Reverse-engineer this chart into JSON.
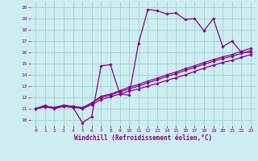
{
  "bg_color": "#cceef0",
  "grid_color": "#99cccc",
  "line_color": "#880088",
  "xlabel": "Windchill (Refroidissement éolien,°C)",
  "xlim": [
    -0.5,
    23.5
  ],
  "ylim": [
    9.5,
    20.5
  ],
  "xticks": [
    0,
    1,
    2,
    3,
    4,
    5,
    6,
    7,
    8,
    9,
    10,
    11,
    12,
    13,
    14,
    15,
    16,
    17,
    18,
    19,
    20,
    21,
    22,
    23
  ],
  "yticks": [
    10,
    11,
    12,
    13,
    14,
    15,
    16,
    17,
    18,
    19,
    20
  ],
  "series": [
    {
      "x": [
        0,
        1,
        2,
        3,
        4,
        5,
        6,
        7,
        8,
        9,
        10,
        11,
        12,
        13,
        14,
        15,
        16,
        17,
        18,
        19,
        20,
        21,
        22,
        23
      ],
      "y": [
        11.0,
        11.3,
        11.0,
        11.2,
        11.1,
        9.75,
        10.3,
        14.8,
        14.9,
        12.3,
        12.2,
        16.8,
        19.8,
        19.7,
        19.4,
        19.5,
        18.9,
        19.0,
        17.9,
        19.0,
        16.5,
        17.0,
        16.0,
        16.0
      ]
    },
    {
      "x": [
        0,
        1,
        2,
        3,
        4,
        5,
        6,
        7,
        8,
        9,
        10,
        11,
        12,
        13,
        14,
        15,
        16,
        17,
        18,
        19,
        20,
        21,
        22,
        23
      ],
      "y": [
        11.0,
        11.15,
        11.05,
        11.25,
        11.15,
        11.0,
        11.35,
        11.8,
        12.05,
        12.3,
        12.55,
        12.75,
        13.0,
        13.25,
        13.5,
        13.75,
        14.0,
        14.3,
        14.6,
        14.85,
        15.1,
        15.3,
        15.55,
        15.8
      ]
    },
    {
      "x": [
        0,
        1,
        2,
        3,
        4,
        5,
        6,
        7,
        8,
        9,
        10,
        11,
        12,
        13,
        14,
        15,
        16,
        17,
        18,
        19,
        20,
        21,
        22,
        23
      ],
      "y": [
        11.0,
        11.2,
        11.1,
        11.3,
        11.2,
        11.1,
        11.5,
        12.0,
        12.2,
        12.5,
        12.75,
        13.0,
        13.3,
        13.55,
        13.85,
        14.1,
        14.4,
        14.65,
        14.95,
        15.2,
        15.45,
        15.65,
        15.9,
        16.15
      ]
    },
    {
      "x": [
        0,
        1,
        2,
        3,
        4,
        5,
        6,
        7,
        8,
        9,
        10,
        11,
        12,
        13,
        14,
        15,
        16,
        17,
        18,
        19,
        20,
        21,
        22,
        23
      ],
      "y": [
        11.0,
        11.2,
        11.1,
        11.3,
        11.2,
        11.05,
        11.5,
        12.1,
        12.3,
        12.6,
        12.9,
        13.15,
        13.45,
        13.7,
        14.0,
        14.25,
        14.55,
        14.8,
        15.1,
        15.35,
        15.6,
        15.8,
        16.1,
        16.35
      ]
    }
  ]
}
